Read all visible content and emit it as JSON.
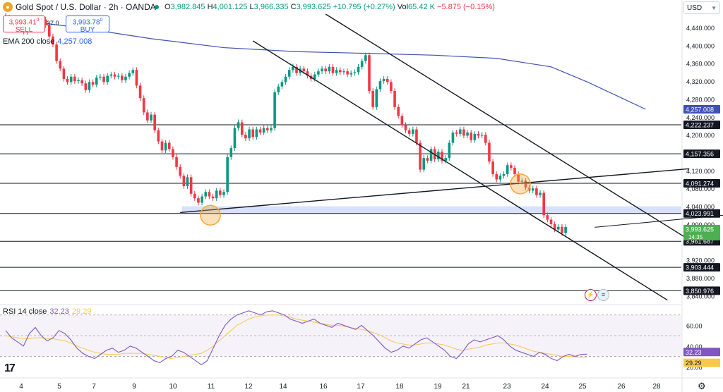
{
  "header": {
    "logo_icon": "gold-coin-icon",
    "title": "Gold Spot / U.S. Dollar · 2h · OANDA",
    "open_label": "O",
    "open": "3,982.845",
    "high_label": "H",
    "high": "4,001.125",
    "low_label": "L",
    "low": "3,966.335",
    "close_label": "C",
    "close": "3,993.625",
    "change": "+10.795 (+0.27%)",
    "vol_label": "Vol",
    "vol": "65.42 K",
    "vol_change": "−5.875 (−0.15%)"
  },
  "trade": {
    "sell_price": "3,993.41",
    "sell_sup": "0",
    "sell_label": "SELL",
    "spread": "37.0",
    "buy_price": "3,993.78",
    "buy_sup": "0",
    "buy_label": "BUY"
  },
  "currency": "USD",
  "colors": {
    "up": "#089981",
    "down": "#f23645",
    "ema": "#3f51b5",
    "rsi": "#7e57c2",
    "rsi_ma": "#f7c948",
    "zone": "#d3defa",
    "highlight": "#f4a736"
  },
  "chart_data": [
    {
      "type": "candlestick",
      "title": "Gold Spot / U.S. Dollar · 2h · OANDA",
      "price_axis_ticks": [
        "4,440.000",
        "4,400.000",
        "4,360.000",
        "4,320.000",
        "4,280.000",
        "4,240.000",
        "4,200.000",
        "4,160.000",
        "4,120.000",
        "4,080.000",
        "4,040.000",
        "4,000.000",
        "3,960.000",
        "3,920.000",
        "3,880.000",
        "3,840.000"
      ],
      "date_axis_ticks": [
        "4",
        "5",
        "7",
        "9",
        "10",
        "11",
        "12",
        "14",
        "16",
        "17",
        "18",
        "19",
        "21",
        "23",
        "24",
        "25",
        "26",
        "28"
      ],
      "ylim": [
        3820,
        4470
      ],
      "ema": {
        "label": "EMA 200 close",
        "value": "4,257.008",
        "points": [
          [
            0,
            4460
          ],
          [
            20,
            4440
          ],
          [
            40,
            4415
          ],
          [
            60,
            4395
          ],
          [
            80,
            4386
          ],
          [
            100,
            4382
          ],
          [
            118,
            4378
          ],
          [
            135,
            4371
          ],
          [
            150,
            4352
          ],
          [
            160,
            4318
          ],
          [
            170,
            4280
          ],
          [
            176,
            4257
          ]
        ]
      },
      "candles_close": [
        4462,
        4458,
        4445,
        4452,
        4460,
        4430,
        4448,
        4455,
        4440,
        4452,
        4458,
        4445,
        4420,
        4402,
        4365,
        4348,
        4325,
        4318,
        4330,
        4320,
        4322,
        4315,
        4300,
        4318,
        4312,
        4328,
        4330,
        4318,
        4332,
        4335,
        4330,
        4332,
        4322,
        4330,
        4338,
        4345,
        4310,
        4282,
        4250,
        4232,
        4245,
        4210,
        4185,
        4165,
        4182,
        4168,
        4150,
        4128,
        4108,
        4085,
        4105,
        4068,
        4058,
        4048,
        4062,
        4072,
        4062,
        4058,
        4075,
        4065,
        4072,
        4150,
        4170,
        4215,
        4228,
        4200,
        4192,
        4212,
        4195,
        4212,
        4205,
        4215,
        4210,
        4215,
        4295,
        4308,
        4318,
        4330,
        4345,
        4352,
        4338,
        4348,
        4342,
        4332,
        4325,
        4335,
        4342,
        4348,
        4342,
        4352,
        4338,
        4345,
        4340,
        4342,
        4335,
        4338,
        4340,
        4352,
        4365,
        4378,
        4298,
        4262,
        4302,
        4320,
        4325,
        4318,
        4298,
        4262,
        4242,
        4222,
        4210,
        4202,
        4212,
        4182,
        4122,
        4148,
        4142,
        4168,
        4145,
        4162,
        4142,
        4148,
        4182,
        4205,
        4202,
        4212,
        4198,
        4205,
        4188,
        4202,
        4198,
        4200,
        4182,
        4140,
        4112,
        4100,
        4108,
        4112,
        4132,
        4126,
        4112,
        4095,
        4097,
        4082,
        4075,
        4080,
        4065,
        4070,
        4020,
        4010,
        4000,
        3988,
        3994,
        3980,
        3993.625
      ],
      "last_price": "3,993.625",
      "countdown": "14:35",
      "horizontal_levels": [
        "4,222.237",
        "4,157.356",
        "4,091.274",
        "4,023.991",
        "3,961.687",
        "3,903.444",
        "3,850.976"
      ],
      "ema_price_tag": "4,257.008",
      "support_zone": [
        4023.99,
        4040
      ],
      "projection": [
        [
          4000,
          3993
        ],
        [
          4038,
          4022
        ],
        [
          4065,
          3908
        ]
      ],
      "annotations": [
        "circle-touch-11",
        "circle-touch-23"
      ]
    },
    {
      "type": "line",
      "title": "RSI 14 close",
      "rsi_value": "32.23",
      "rsi_ma_value": "29.29",
      "y_ticks": [
        "60.00",
        "40.00",
        "20.00"
      ],
      "band": [
        30,
        70
      ],
      "rsi": [
        55,
        48,
        44,
        40,
        52,
        58,
        50,
        45,
        48,
        55,
        52,
        46,
        38,
        33,
        30,
        28,
        32,
        36,
        38,
        34,
        36,
        40,
        38,
        34,
        30,
        26,
        24,
        28,
        30,
        36,
        34,
        30,
        26,
        22,
        26,
        38,
        50,
        60,
        66,
        70,
        72,
        74,
        72,
        70,
        73,
        74,
        72,
        70,
        66,
        64,
        62,
        64,
        66,
        62,
        60,
        58,
        62,
        60,
        58,
        56,
        60,
        55,
        50,
        44,
        38,
        34,
        36,
        40,
        38,
        42,
        46,
        48,
        44,
        40,
        36,
        30,
        28,
        34,
        42,
        46,
        44,
        46,
        48,
        50,
        46,
        40,
        36,
        34,
        32,
        30,
        34,
        32,
        28,
        26,
        30,
        32,
        30,
        32,
        32.23
      ],
      "rsi_ma": [
        50,
        49,
        48,
        47,
        47,
        48,
        48,
        47,
        47,
        46,
        45,
        43,
        40,
        38,
        36,
        34,
        33,
        32,
        32,
        32,
        33,
        33,
        33,
        33,
        32,
        31,
        30,
        29,
        28,
        29,
        30,
        31,
        32,
        33,
        36,
        40,
        45,
        50,
        55,
        60,
        63,
        66,
        68,
        69,
        70,
        70,
        70,
        69,
        68,
        66,
        65,
        64,
        63,
        62,
        61,
        60,
        60,
        59,
        58,
        57,
        56,
        55,
        53,
        51,
        48,
        45,
        43,
        42,
        41,
        41,
        42,
        43,
        43,
        42,
        41,
        39,
        37,
        36,
        37,
        38,
        39,
        41,
        42,
        43,
        43,
        42,
        41,
        39,
        37,
        35,
        34,
        33,
        32,
        31,
        30,
        30,
        29.5,
        29.3,
        29.29
      ]
    }
  ]
}
